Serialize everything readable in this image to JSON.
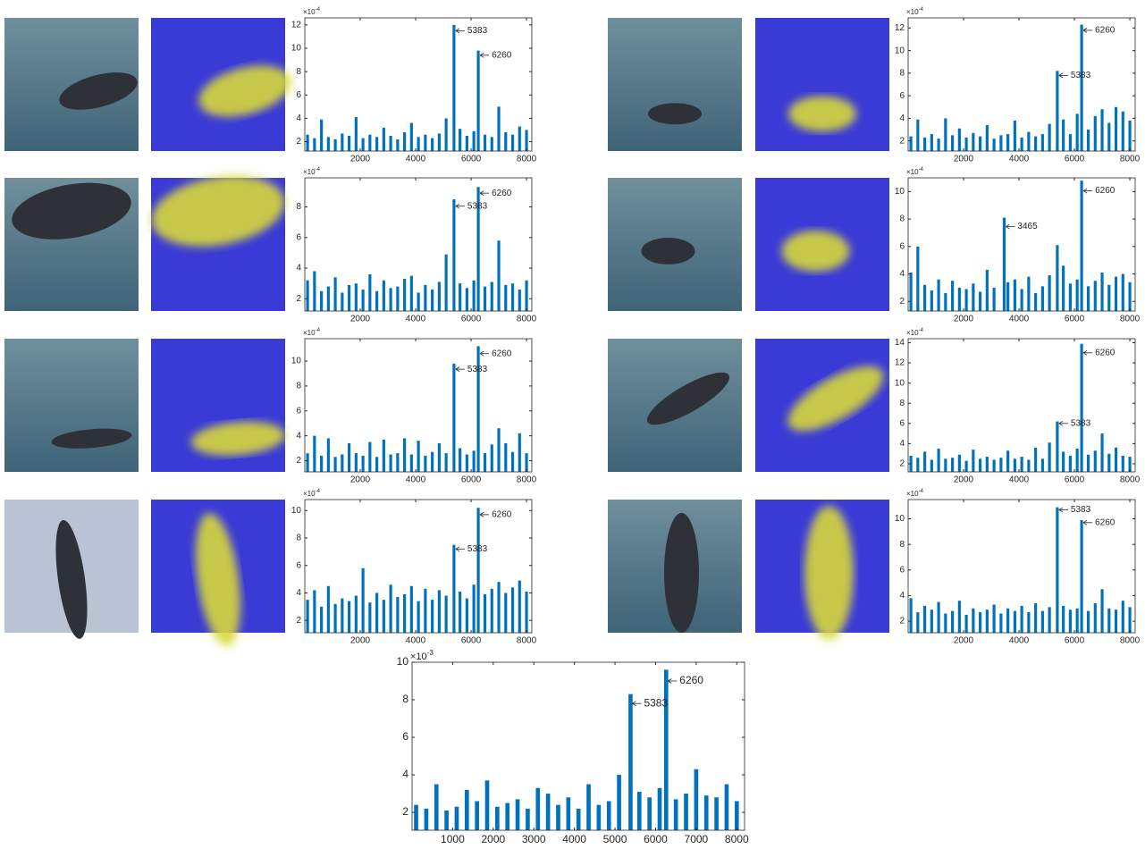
{
  "chart_data": [
    {
      "type": "bar",
      "color": "#0072bd",
      "scale_label": "×10",
      "scale_exponent": "-4",
      "xlim": [
        0,
        8192
      ],
      "ylim": [
        1.2,
        12.6
      ],
      "xticks": [
        2000,
        4000,
        6000,
        8000
      ],
      "yticks": [
        2,
        4,
        6,
        8,
        10,
        12
      ],
      "x": [
        100,
        350,
        600,
        850,
        1100,
        1350,
        1600,
        1850,
        2100,
        2350,
        2600,
        2850,
        3100,
        3350,
        3600,
        3850,
        4100,
        4350,
        4600,
        4850,
        5100,
        5383,
        5600,
        5850,
        6100,
        6260,
        6500,
        6750,
        7000,
        7250,
        7500,
        7750,
        8000
      ],
      "values": [
        2.6,
        2.3,
        3.9,
        2.4,
        2.2,
        2.7,
        2.5,
        4.1,
        2.3,
        2.6,
        2.4,
        3.2,
        2.5,
        2.2,
        2.8,
        3.6,
        2.4,
        2.6,
        2.3,
        2.7,
        4.0,
        12,
        3.1,
        2.5,
        2.9,
        9.8,
        2.6,
        2.4,
        5.0,
        2.8,
        2.6,
        3.3,
        3.0
      ],
      "annotations": [
        {
          "x": 5383,
          "y": 11.5,
          "label": "5383"
        },
        {
          "x": 6260,
          "y": 9.4,
          "label": "6260"
        }
      ]
    },
    {
      "type": "bar",
      "color": "#0072bd",
      "scale_label": "×10",
      "scale_exponent": "-4",
      "xlim": [
        0,
        8192
      ],
      "ylim": [
        1.1,
        12.9
      ],
      "xticks": [
        2000,
        4000,
        6000,
        8000
      ],
      "yticks": [
        2,
        4,
        6,
        8,
        10,
        12
      ],
      "x": [
        100,
        350,
        600,
        850,
        1100,
        1350,
        1600,
        1850,
        2100,
        2350,
        2600,
        2850,
        3100,
        3350,
        3600,
        3850,
        4100,
        4350,
        4600,
        4850,
        5100,
        5383,
        5600,
        5850,
        6100,
        6260,
        6500,
        6750,
        7000,
        7250,
        7500,
        7750,
        8000
      ],
      "values": [
        2.4,
        3.9,
        2.3,
        2.6,
        2.2,
        4.0,
        2.5,
        3.1,
        2.3,
        2.7,
        2.4,
        3.4,
        2.2,
        2.5,
        2.6,
        3.8,
        2.3,
        2.8,
        2.4,
        2.6,
        3.5,
        8.2,
        3.9,
        2.6,
        4.4,
        12.3,
        3.0,
        4.2,
        4.8,
        3.6,
        5.0,
        4.6,
        3.8
      ],
      "annotations": [
        {
          "x": 6260,
          "y": 11.8,
          "label": "6260"
        },
        {
          "x": 5383,
          "y": 7.8,
          "label": "5383"
        }
      ]
    },
    {
      "type": "bar",
      "color": "#0072bd",
      "scale_label": "×10",
      "scale_exponent": "-4",
      "xlim": [
        0,
        8192
      ],
      "ylim": [
        1.2,
        9.9
      ],
      "xticks": [
        2000,
        4000,
        6000,
        8000
      ],
      "yticks": [
        2,
        4,
        6,
        8
      ],
      "x": [
        100,
        350,
        600,
        850,
        1100,
        1350,
        1600,
        1850,
        2100,
        2350,
        2600,
        2850,
        3100,
        3350,
        3600,
        3850,
        4100,
        4350,
        4600,
        4850,
        5100,
        5383,
        5600,
        5850,
        6100,
        6260,
        6500,
        6750,
        7000,
        7250,
        7500,
        7750,
        8000
      ],
      "values": [
        3.2,
        3.8,
        2.5,
        2.8,
        3.4,
        2.4,
        2.9,
        3.0,
        2.6,
        3.6,
        2.5,
        3.2,
        2.7,
        2.8,
        3.3,
        3.5,
        2.4,
        2.9,
        2.6,
        3.1,
        4.9,
        8.5,
        3.0,
        2.7,
        3.2,
        9.3,
        2.8,
        3.1,
        5.8,
        2.9,
        3.0,
        2.6,
        3.2
      ],
      "annotations": [
        {
          "x": 6260,
          "y": 8.9,
          "label": "6260"
        },
        {
          "x": 5383,
          "y": 8.05,
          "label": "5383"
        }
      ]
    },
    {
      "type": "bar",
      "color": "#0072bd",
      "scale_label": "×10",
      "scale_exponent": "-4",
      "xlim": [
        0,
        8192
      ],
      "ylim": [
        1.3,
        11
      ],
      "xticks": [
        2000,
        4000,
        6000,
        8000
      ],
      "yticks": [
        2,
        4,
        6,
        8,
        10
      ],
      "x": [
        100,
        350,
        600,
        850,
        1100,
        1350,
        1600,
        1850,
        2100,
        2350,
        2600,
        2850,
        3100,
        3465,
        3600,
        3850,
        4100,
        4350,
        4600,
        4850,
        5100,
        5383,
        5600,
        5850,
        6100,
        6260,
        6500,
        6750,
        7000,
        7250,
        7500,
        7750,
        8000
      ],
      "values": [
        4.1,
        6.0,
        3.2,
        2.8,
        3.6,
        2.6,
        3.5,
        3.0,
        2.9,
        3.3,
        2.7,
        4.3,
        3.0,
        8.1,
        3.4,
        3.6,
        2.9,
        3.8,
        2.6,
        3.1,
        3.9,
        6.1,
        4.6,
        3.3,
        3.6,
        10.8,
        3.1,
        3.5,
        4.1,
        3.2,
        3.8,
        4.0,
        3.4
      ],
      "annotations": [
        {
          "x": 6260,
          "y": 10.05,
          "label": "6260"
        },
        {
          "x": 3465,
          "y": 7.45,
          "label": "3465"
        }
      ]
    },
    {
      "type": "bar",
      "color": "#0072bd",
      "scale_label": "×10",
      "scale_exponent": "-4",
      "xlim": [
        0,
        8192
      ],
      "ylim": [
        1.1,
        11.8
      ],
      "xticks": [
        2000,
        4000,
        6000,
        8000
      ],
      "yticks": [
        2,
        4,
        6,
        8,
        10
      ],
      "x": [
        100,
        350,
        600,
        850,
        1100,
        1350,
        1600,
        1850,
        2100,
        2350,
        2600,
        2850,
        3100,
        3350,
        3600,
        3850,
        4100,
        4350,
        4600,
        4850,
        5100,
        5383,
        5600,
        5850,
        6100,
        6260,
        6500,
        6750,
        7000,
        7250,
        7500,
        7750,
        8000
      ],
      "values": [
        2.6,
        4.0,
        2.4,
        3.8,
        2.3,
        2.5,
        3.4,
        2.6,
        2.4,
        3.5,
        2.3,
        3.7,
        2.5,
        2.6,
        3.8,
        2.5,
        3.6,
        2.4,
        2.7,
        3.4,
        2.6,
        9.8,
        3.0,
        2.5,
        2.8,
        11.2,
        2.6,
        3.3,
        4.6,
        3.4,
        2.7,
        4.2,
        2.6
      ],
      "annotations": [
        {
          "x": 6260,
          "y": 10.6,
          "label": "6260"
        },
        {
          "x": 5383,
          "y": 9.35,
          "label": "5383"
        }
      ]
    },
    {
      "type": "bar",
      "color": "#0072bd",
      "scale_label": "×10",
      "scale_exponent": "-4",
      "xlim": [
        0,
        8192
      ],
      "ylim": [
        1.2,
        14.4
      ],
      "xticks": [
        2000,
        4000,
        6000,
        8000
      ],
      "yticks": [
        2,
        4,
        6,
        8,
        10,
        12,
        14
      ],
      "x": [
        100,
        350,
        600,
        850,
        1100,
        1350,
        1600,
        1850,
        2100,
        2350,
        2600,
        2850,
        3100,
        3350,
        3600,
        3850,
        4100,
        4350,
        4600,
        4850,
        5100,
        5383,
        5600,
        5850,
        6100,
        6260,
        6500,
        6750,
        7000,
        7250,
        7500,
        7750,
        8000
      ],
      "values": [
        2.8,
        2.6,
        3.2,
        2.4,
        3.5,
        2.5,
        2.6,
        2.9,
        2.3,
        3.4,
        2.5,
        2.7,
        2.4,
        2.6,
        3.3,
        2.5,
        2.7,
        2.4,
        3.6,
        2.5,
        4.1,
        6.2,
        3.2,
        2.8,
        3.5,
        13.9,
        2.9,
        3.3,
        5.0,
        3.0,
        3.6,
        2.8,
        2.7
      ],
      "annotations": [
        {
          "x": 6260,
          "y": 13.0,
          "label": "6260"
        },
        {
          "x": 5383,
          "y": 6.0,
          "label": "5383"
        }
      ]
    },
    {
      "type": "bar",
      "color": "#0072bd",
      "scale_label": "×10",
      "scale_exponent": "-4",
      "xlim": [
        0,
        8192
      ],
      "ylim": [
        1.1,
        10.8
      ],
      "xticks": [
        2000,
        4000,
        6000,
        8000
      ],
      "yticks": [
        2,
        4,
        6,
        8,
        10
      ],
      "x": [
        100,
        350,
        600,
        850,
        1100,
        1350,
        1600,
        1850,
        2100,
        2350,
        2600,
        2850,
        3100,
        3350,
        3600,
        3850,
        4100,
        4350,
        4600,
        4850,
        5100,
        5383,
        5600,
        5850,
        6100,
        6260,
        6500,
        6750,
        7000,
        7250,
        7500,
        7750,
        8000
      ],
      "values": [
        3.5,
        4.2,
        3.0,
        4.5,
        3.2,
        3.6,
        3.4,
        3.8,
        5.8,
        3.3,
        4.0,
        3.5,
        4.6,
        3.7,
        3.9,
        4.5,
        3.4,
        4.3,
        3.5,
        4.2,
        3.8,
        7.5,
        4.1,
        3.6,
        4.6,
        10.2,
        3.9,
        4.3,
        4.8,
        4.0,
        4.4,
        4.9,
        4.1
      ],
      "annotations": [
        {
          "x": 6260,
          "y": 9.7,
          "label": "6260"
        },
        {
          "x": 5383,
          "y": 7.2,
          "label": "5383"
        }
      ]
    },
    {
      "type": "bar",
      "color": "#0072bd",
      "scale_label": "×10",
      "scale_exponent": "-4",
      "xlim": [
        0,
        8192
      ],
      "ylim": [
        1.1,
        11.5
      ],
      "xticks": [
        2000,
        4000,
        6000,
        8000
      ],
      "yticks": [
        2,
        4,
        6,
        8,
        10
      ],
      "x": [
        100,
        350,
        600,
        850,
        1100,
        1350,
        1600,
        1850,
        2100,
        2350,
        2600,
        2850,
        3100,
        3350,
        3600,
        3850,
        4100,
        4350,
        4600,
        4850,
        5100,
        5383,
        5600,
        5850,
        6100,
        6260,
        6500,
        6750,
        7000,
        7250,
        7500,
        7750,
        8000
      ],
      "values": [
        3.8,
        2.7,
        3.2,
        2.9,
        3.5,
        2.6,
        2.8,
        3.6,
        2.5,
        3.0,
        2.7,
        2.9,
        3.3,
        2.6,
        3.0,
        2.8,
        3.2,
        2.7,
        3.4,
        2.8,
        3.1,
        10.9,
        3.2,
        2.9,
        3.0,
        9.9,
        2.8,
        3.4,
        4.5,
        3.0,
        2.9,
        3.6,
        3.1
      ],
      "annotations": [
        {
          "x": 5383,
          "y": 10.7,
          "label": "5383"
        },
        {
          "x": 6260,
          "y": 9.7,
          "label": "6260"
        }
      ]
    },
    {
      "type": "bar",
      "color": "#0072bd",
      "scale_label": "×10",
      "scale_exponent": "-3",
      "xlim": [
        0,
        8192
      ],
      "ylim": [
        1.05,
        10
      ],
      "xticks": [
        1000,
        2000,
        3000,
        4000,
        5000,
        6000,
        7000,
        8000
      ],
      "yticks": [
        2,
        4,
        6,
        8,
        10
      ],
      "x": [
        100,
        350,
        600,
        850,
        1100,
        1350,
        1600,
        1850,
        2100,
        2350,
        2600,
        2850,
        3100,
        3350,
        3600,
        3850,
        4100,
        4350,
        4600,
        4850,
        5100,
        5383,
        5600,
        5850,
        6100,
        6260,
        6500,
        6750,
        7000,
        7250,
        7500,
        7750,
        8000
      ],
      "values": [
        2.4,
        2.2,
        3.5,
        2.1,
        2.3,
        3.2,
        2.6,
        3.7,
        2.3,
        2.5,
        2.7,
        2.2,
        3.3,
        3.0,
        2.4,
        2.8,
        2.2,
        3.5,
        2.4,
        2.6,
        4.0,
        8.3,
        3.1,
        2.8,
        3.3,
        9.6,
        2.7,
        3.0,
        4.3,
        2.9,
        2.8,
        3.5,
        2.6
      ],
      "annotations": [
        {
          "x": 6260,
          "y": 9.0,
          "label": "6260"
        },
        {
          "x": 5383,
          "y": 7.8,
          "label": "5383"
        }
      ]
    }
  ]
}
